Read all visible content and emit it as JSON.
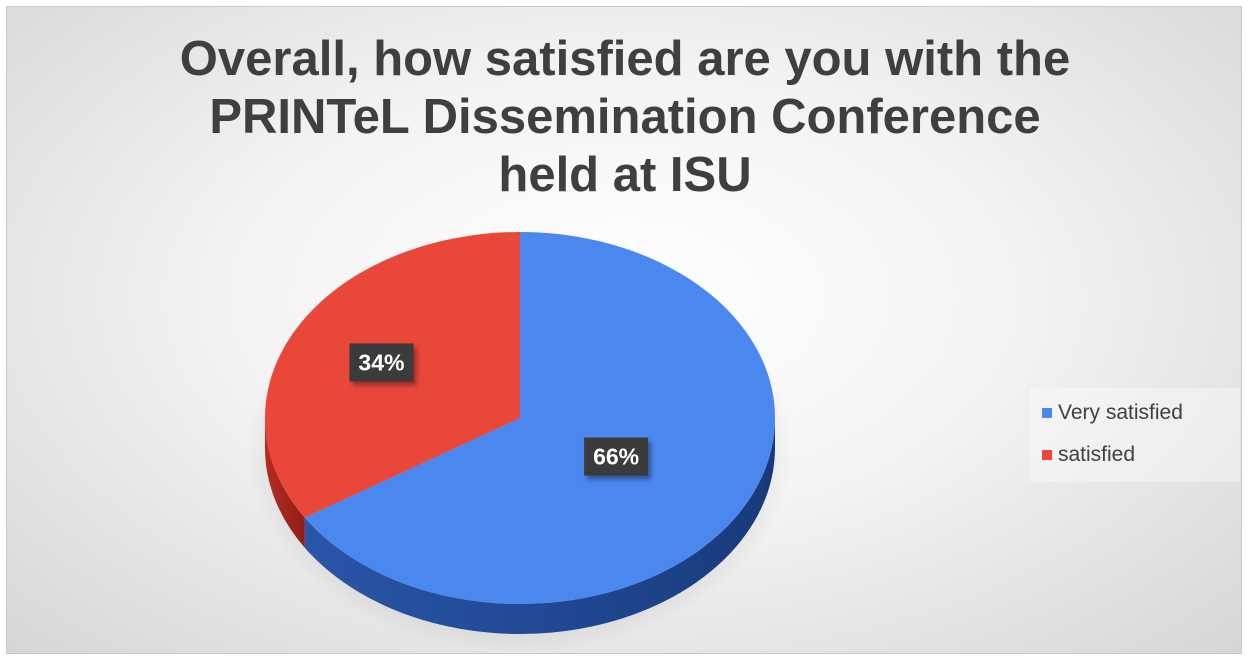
{
  "chart_data": {
    "type": "pie",
    "title_lines": [
      "Overall, how satisfied are you with the",
      "PRINTeL Dissemination Conference",
      "held at ISU"
    ],
    "categories": [
      "Very satisfied",
      "satisfied"
    ],
    "values": [
      66,
      34
    ],
    "data_labels": [
      "66%",
      "34%"
    ],
    "colors": [
      "#4a87ee",
      "#e9473a"
    ],
    "legend_placement": "right",
    "style": "3d"
  }
}
